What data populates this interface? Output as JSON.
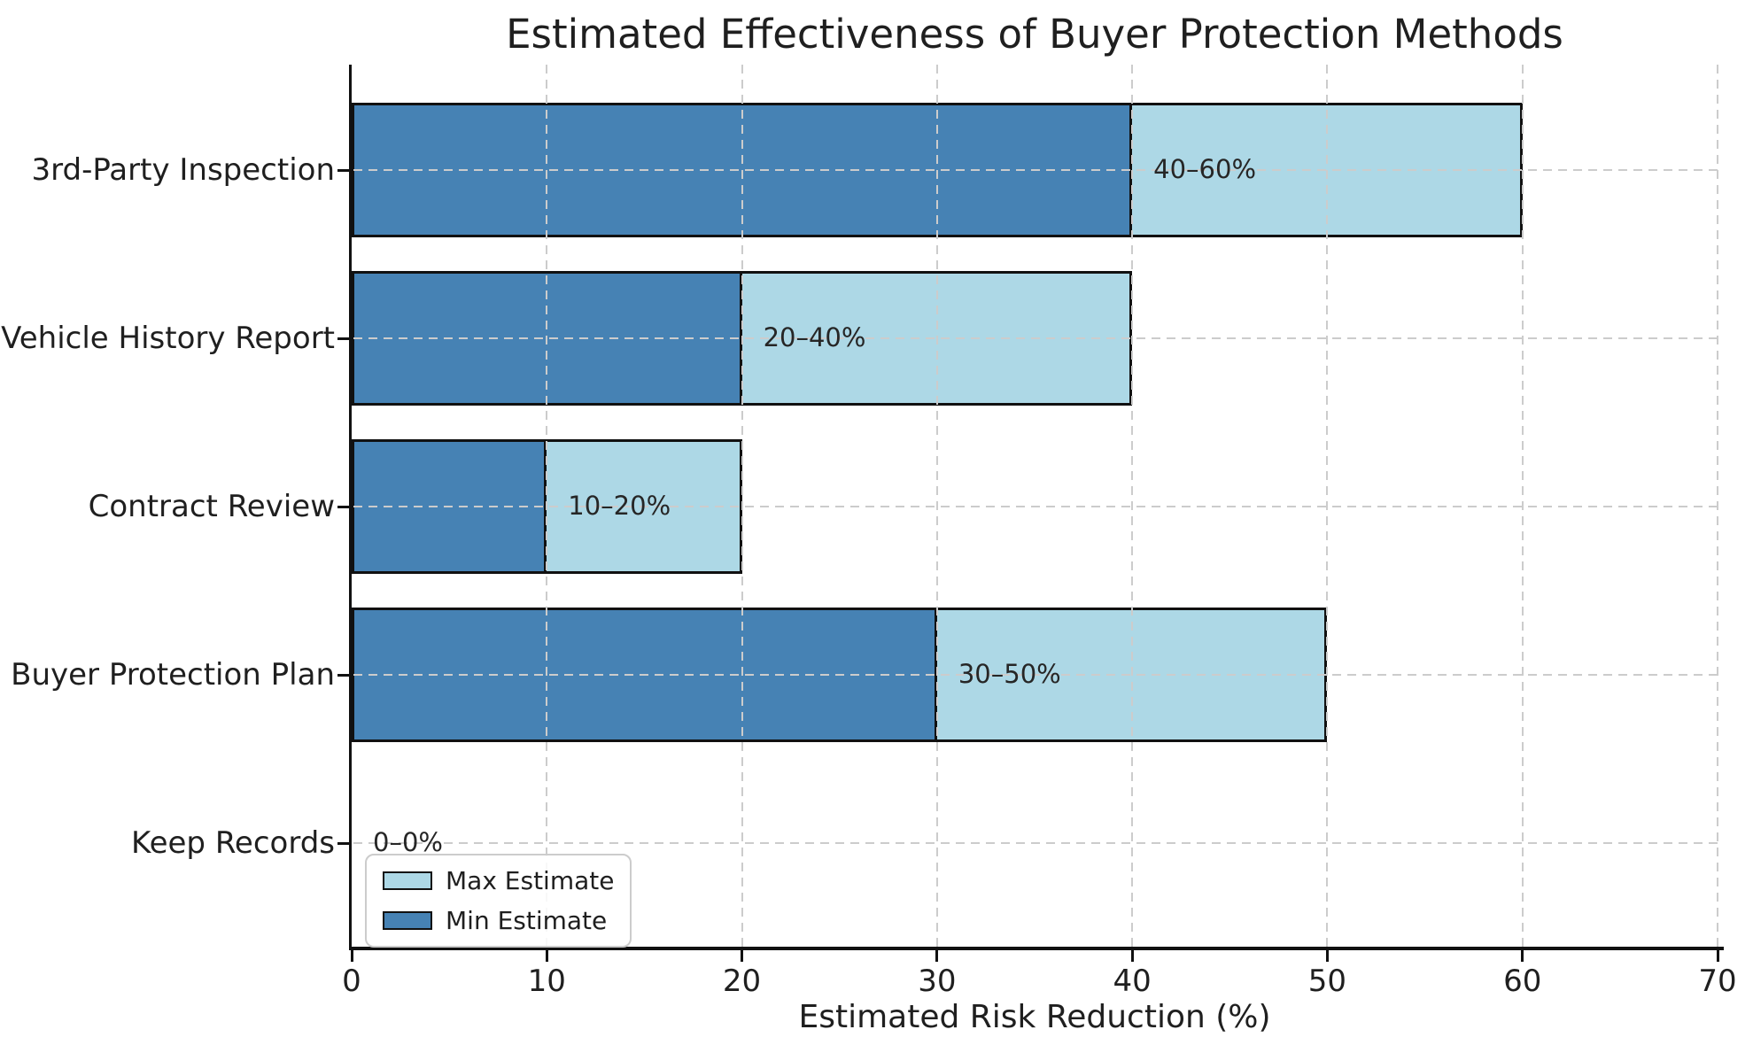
{
  "title": "Estimated Effectiveness of Buyer Protection Methods",
  "xlabel": "Estimated Risk Reduction (%)",
  "colors": {
    "min_bar": "#4682B4",
    "max_bar": "#ADD8E6",
    "bar_edge": "#111111",
    "grid": "#cccccc",
    "text": "#1f1f1f"
  },
  "legend": {
    "entries": [
      {
        "label": "Max Estimate",
        "color": "#ADD8E6"
      },
      {
        "label": "Min Estimate",
        "color": "#4682B4"
      }
    ],
    "position": "lower left"
  },
  "chart_data": {
    "type": "bar",
    "orientation": "horizontal",
    "title": "Estimated Effectiveness of Buyer Protection Methods",
    "xlabel": "Estimated Risk Reduction (%)",
    "ylabel": "",
    "categories": [
      "3rd-Party Inspection",
      "Vehicle History Report",
      "Contract Review",
      "Buyer Protection Plan",
      "Keep Records"
    ],
    "series": [
      {
        "name": "Min Estimate",
        "values": [
          40,
          20,
          10,
          30,
          0
        ]
      },
      {
        "name": "Max Estimate",
        "values": [
          60,
          40,
          20,
          50,
          0
        ]
      }
    ],
    "annotations": [
      "40–60%",
      "20–40%",
      "10–20%",
      "30–50%",
      "0–0%"
    ],
    "x_ticks": [
      0,
      10,
      20,
      30,
      40,
      50,
      60,
      70
    ],
    "xlim": [
      0,
      70
    ],
    "grid": true,
    "grid_style": "dashed",
    "legend_position": "lower left"
  }
}
